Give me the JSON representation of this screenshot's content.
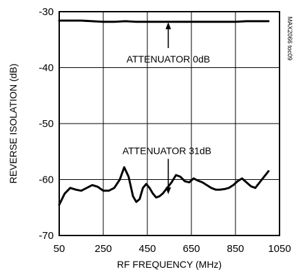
{
  "chart_data": {
    "type": "line",
    "xlabel": "RF FREQUENCY (MHz)",
    "ylabel": "REVERSE ISOLATION (dB)",
    "xlim": [
      50,
      1050
    ],
    "ylim": [
      -70,
      -30
    ],
    "xticks": [
      50,
      250,
      450,
      650,
      850,
      1050
    ],
    "yticks": [
      -30,
      -40,
      -50,
      -60,
      -70
    ],
    "grid": true,
    "figure_code": "MAX2066 toc09",
    "series": [
      {
        "name": "ATTENUATOR 0dB",
        "x": [
          50,
          100,
          150,
          200,
          250,
          300,
          350,
          400,
          450,
          500,
          550,
          600,
          650,
          700,
          750,
          800,
          850,
          900,
          950,
          1000
        ],
        "y": [
          -31.6,
          -31.6,
          -31.6,
          -31.7,
          -31.8,
          -31.8,
          -31.7,
          -31.8,
          -31.8,
          -31.8,
          -31.8,
          -31.8,
          -31.8,
          -31.8,
          -31.8,
          -31.8,
          -31.8,
          -31.7,
          -31.7,
          -31.7
        ]
      },
      {
        "name": "ATTENUATOR 31dB",
        "x": [
          50,
          75,
          100,
          125,
          150,
          175,
          200,
          225,
          250,
          275,
          300,
          325,
          345,
          365,
          385,
          400,
          415,
          430,
          445,
          460,
          475,
          490,
          505,
          520,
          540,
          560,
          580,
          600,
          620,
          640,
          660,
          680,
          700,
          720,
          740,
          760,
          780,
          800,
          820,
          840,
          860,
          880,
          900,
          920,
          940,
          960,
          980,
          1000
        ],
        "y": [
          -64.5,
          -62.5,
          -61.5,
          -61.8,
          -62.0,
          -61.5,
          -61.0,
          -61.3,
          -62.0,
          -62.0,
          -61.5,
          -60.0,
          -57.8,
          -59.5,
          -63.0,
          -64.0,
          -63.5,
          -61.5,
          -60.8,
          -61.5,
          -62.5,
          -63.2,
          -63.0,
          -62.5,
          -61.5,
          -60.5,
          -59.2,
          -59.5,
          -60.3,
          -60.5,
          -59.8,
          -60.2,
          -60.5,
          -61.0,
          -61.5,
          -61.8,
          -61.8,
          -61.7,
          -61.5,
          -61.0,
          -60.3,
          -59.8,
          -60.5,
          -61.2,
          -61.5,
          -60.5,
          -59.5,
          -58.5
        ]
      }
    ],
    "annotations": [
      {
        "text": "ATTENUATOR 0dB",
        "target_series": 0,
        "arrow_from": [
          -36.5,
          545
        ],
        "arrow_to": [
          -31.9,
          545
        ]
      },
      {
        "text": "ATTENUATOR 31dB",
        "target_series": 1,
        "arrow_from": [
          -56.3,
          545
        ],
        "arrow_to": [
          -62.6,
          545
        ]
      }
    ]
  }
}
